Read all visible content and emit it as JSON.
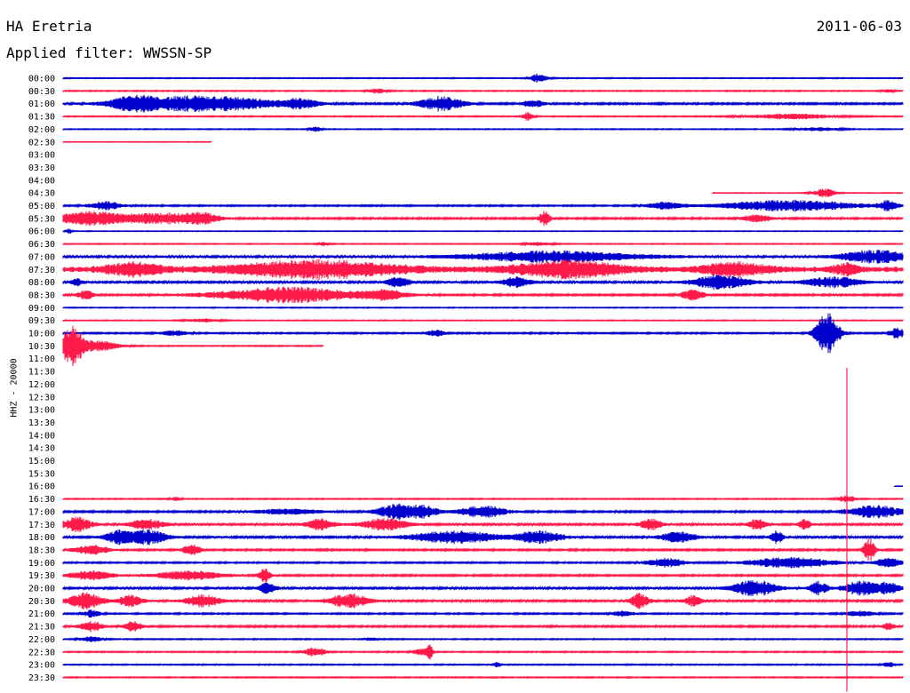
{
  "header": {
    "station": "HA Eretria",
    "date": "2011-06-03",
    "filter": "Applied filter: WWSSN-SP"
  },
  "chart_data": {
    "type": "line",
    "title": "HA Eretria",
    "ylabel": "HHZ - 20000",
    "x_unit": "minutes within row (0-30)",
    "colors": {
      "even_row": "#0000cc",
      "odd_row": "#ff1a4a"
    },
    "rows": [
      {
        "label": "00:00",
        "start": 0,
        "end": 30,
        "amp": 0.5,
        "bursts": [
          [
            17,
            0.3,
            5
          ]
        ]
      },
      {
        "label": "00:30",
        "start": 0,
        "end": 30,
        "amp": 0.6,
        "bursts": [
          [
            11.2,
            0.3,
            3
          ],
          [
            29.5,
            0.2,
            2
          ]
        ]
      },
      {
        "label": "01:00",
        "start": 0,
        "end": 30,
        "amp": 1.0,
        "bursts": [
          [
            2.5,
            0.8,
            7
          ],
          [
            5,
            2.5,
            9
          ],
          [
            8.5,
            0.6,
            5
          ],
          [
            13.5,
            0.8,
            8
          ],
          [
            16.8,
            0.4,
            4
          ]
        ]
      },
      {
        "label": "01:30",
        "start": 0,
        "end": 30,
        "amp": 0.6,
        "bursts": [
          [
            16.6,
            0.2,
            5
          ],
          [
            26,
            1.5,
            3
          ]
        ]
      },
      {
        "label": "02:00",
        "start": 0,
        "end": 30,
        "amp": 0.5,
        "bursts": [
          [
            9,
            0.2,
            3
          ],
          [
            27,
            0.8,
            2
          ]
        ]
      },
      {
        "label": "02:30",
        "start": 0,
        "end": 5.3,
        "amp": 0.4,
        "bursts": []
      },
      {
        "label": "03:00",
        "start": 0,
        "end": 0,
        "amp": 0,
        "bursts": []
      },
      {
        "label": "03:30",
        "start": 0,
        "end": 0,
        "amp": 0,
        "bursts": []
      },
      {
        "label": "04:00",
        "start": 0,
        "end": 0,
        "amp": 0,
        "bursts": []
      },
      {
        "label": "04:30",
        "start": 23.2,
        "end": 30,
        "amp": 0.4,
        "bursts": [
          [
            27.2,
            0.4,
            5
          ]
        ]
      },
      {
        "label": "05:00",
        "start": 0,
        "end": 30,
        "amp": 0.8,
        "bursts": [
          [
            1.5,
            0.6,
            5
          ],
          [
            21.5,
            0.6,
            4
          ],
          [
            26,
            2.5,
            6
          ],
          [
            29.5,
            0.3,
            6
          ]
        ]
      },
      {
        "label": "05:30",
        "start": 0,
        "end": 30,
        "amp": 1.0,
        "bursts": [
          [
            1,
            1.2,
            8
          ],
          [
            3.5,
            1.3,
            6
          ],
          [
            5,
            0.6,
            6
          ],
          [
            17.2,
            0.2,
            8
          ],
          [
            24.8,
            0.5,
            4
          ]
        ]
      },
      {
        "label": "06:00",
        "start": 0,
        "end": 30,
        "amp": 0.4,
        "bursts": [
          [
            0.2,
            0.1,
            3
          ]
        ]
      },
      {
        "label": "06:30",
        "start": 0,
        "end": 30,
        "amp": 0.5,
        "bursts": [
          [
            9.3,
            0.2,
            2
          ],
          [
            17,
            0.5,
            2
          ]
        ]
      },
      {
        "label": "07:00",
        "start": 0,
        "end": 30,
        "amp": 1.4,
        "bursts": [
          [
            17.5,
            3,
            6
          ],
          [
            29,
            1.2,
            7
          ]
        ]
      },
      {
        "label": "07:30",
        "start": 0,
        "end": 30,
        "amp": 3.0,
        "bursts": [
          [
            2.5,
            1,
            7
          ],
          [
            9,
            3,
            9
          ],
          [
            18,
            2,
            9
          ],
          [
            24,
            1.2,
            7
          ],
          [
            28,
            0.5,
            6
          ]
        ]
      },
      {
        "label": "08:00",
        "start": 0,
        "end": 30,
        "amp": 1.2,
        "bursts": [
          [
            0.5,
            0.2,
            4
          ],
          [
            12,
            0.4,
            6
          ],
          [
            16.2,
            0.5,
            6
          ],
          [
            23.5,
            1,
            8
          ],
          [
            27.5,
            1,
            6
          ]
        ]
      },
      {
        "label": "08:30",
        "start": 0,
        "end": 30,
        "amp": 1.0,
        "bursts": [
          [
            0.8,
            0.3,
            5
          ],
          [
            8,
            2.5,
            9
          ],
          [
            11.5,
            0.8,
            5
          ],
          [
            22.5,
            0.4,
            6
          ]
        ]
      },
      {
        "label": "09:00",
        "start": 0,
        "end": 30,
        "amp": 0.5,
        "bursts": []
      },
      {
        "label": "09:30",
        "start": 0,
        "end": 30,
        "amp": 0.5,
        "bursts": [
          [
            5,
            0.6,
            2
          ]
        ]
      },
      {
        "label": "10:00",
        "start": 0,
        "end": 30,
        "amp": 0.8,
        "bursts": [
          [
            4,
            0.5,
            3
          ],
          [
            13.3,
            0.3,
            4
          ],
          [
            27.3,
            0.4,
            24
          ],
          [
            29.8,
            0.3,
            6
          ]
        ]
      },
      {
        "label": "10:30",
        "start": 0,
        "end": 9.3,
        "amp": 0.6,
        "bursts": [
          [
            0.3,
            0.4,
            22
          ],
          [
            1.2,
            0.8,
            6
          ]
        ]
      },
      {
        "label": "11:00",
        "start": 0,
        "end": 0,
        "amp": 0,
        "bursts": []
      },
      {
        "label": "11:30",
        "start": 0,
        "end": 0,
        "amp": 0,
        "bursts": []
      },
      {
        "label": "12:00",
        "start": 0,
        "end": 0,
        "amp": 0,
        "bursts": []
      },
      {
        "label": "12:30",
        "start": 0,
        "end": 0,
        "amp": 0,
        "bursts": []
      },
      {
        "label": "13:00",
        "start": 0,
        "end": 0,
        "amp": 0,
        "bursts": []
      },
      {
        "label": "13:30",
        "start": 0,
        "end": 0,
        "amp": 0,
        "bursts": []
      },
      {
        "label": "14:00",
        "start": 0,
        "end": 0,
        "amp": 0,
        "bursts": []
      },
      {
        "label": "14:30",
        "start": 0,
        "end": 0,
        "amp": 0,
        "bursts": []
      },
      {
        "label": "15:00",
        "start": 0,
        "end": 0,
        "amp": 0,
        "bursts": []
      },
      {
        "label": "15:30",
        "start": 0,
        "end": 0,
        "amp": 0,
        "bursts": []
      },
      {
        "label": "16:00",
        "start": 29.7,
        "end": 30,
        "amp": 0.3,
        "bursts": []
      },
      {
        "label": "16:30",
        "start": 0,
        "end": 30,
        "amp": 0.6,
        "bursts": [
          [
            4,
            0.2,
            2
          ],
          [
            28,
            0.3,
            4
          ]
        ]
      },
      {
        "label": "17:00",
        "start": 0,
        "end": 30,
        "amp": 1.0,
        "bursts": [
          [
            8,
            1.2,
            3
          ],
          [
            11.8,
            0.6,
            8
          ],
          [
            12.8,
            0.6,
            7
          ],
          [
            15,
            0.8,
            7
          ],
          [
            29,
            1,
            7
          ]
        ]
      },
      {
        "label": "17:30",
        "start": 0,
        "end": 30,
        "amp": 1.2,
        "bursts": [
          [
            0.5,
            0.5,
            8
          ],
          [
            3,
            0.6,
            6
          ],
          [
            9.2,
            0.5,
            6
          ],
          [
            11.5,
            0.8,
            7
          ],
          [
            21,
            0.4,
            6
          ],
          [
            24.8,
            0.3,
            7
          ],
          [
            26.5,
            0.2,
            6
          ]
        ]
      },
      {
        "label": "18:00",
        "start": 0,
        "end": 30,
        "amp": 1.2,
        "bursts": [
          [
            2,
            0.5,
            7
          ],
          [
            3,
            0.7,
            8
          ],
          [
            14,
            1.5,
            7
          ],
          [
            17,
            0.8,
            7
          ],
          [
            22,
            0.6,
            6
          ],
          [
            25.5,
            0.2,
            8
          ]
        ]
      },
      {
        "label": "18:30",
        "start": 0,
        "end": 30,
        "amp": 1.0,
        "bursts": [
          [
            1,
            0.6,
            6
          ],
          [
            4.6,
            0.3,
            7
          ],
          [
            28.8,
            0.2,
            14
          ]
        ]
      },
      {
        "label": "19:00",
        "start": 0,
        "end": 30,
        "amp": 0.8,
        "bursts": [
          [
            21.5,
            0.7,
            5
          ],
          [
            26,
            1.5,
            6
          ],
          [
            29.5,
            0.5,
            5
          ]
        ]
      },
      {
        "label": "19:30",
        "start": 0,
        "end": 30,
        "amp": 1.0,
        "bursts": [
          [
            1,
            0.8,
            5
          ],
          [
            4.5,
            1.2,
            5
          ],
          [
            7.2,
            0.2,
            8
          ]
        ]
      },
      {
        "label": "20:00",
        "start": 0,
        "end": 30,
        "amp": 1.2,
        "bursts": [
          [
            7.3,
            0.3,
            6
          ],
          [
            24.7,
            0.8,
            9
          ],
          [
            27,
            0.3,
            8
          ],
          [
            28.5,
            0.6,
            8
          ],
          [
            29.5,
            0.5,
            6
          ]
        ]
      },
      {
        "label": "20:30",
        "start": 0,
        "end": 30,
        "amp": 1.2,
        "bursts": [
          [
            0.8,
            0.6,
            9
          ],
          [
            2.4,
            0.4,
            7
          ],
          [
            5,
            0.6,
            7
          ],
          [
            10.2,
            0.7,
            8
          ],
          [
            20.6,
            0.3,
            9
          ],
          [
            22.5,
            0.3,
            6
          ]
        ]
      },
      {
        "label": "21:00",
        "start": 0,
        "end": 30,
        "amp": 0.8,
        "bursts": [
          [
            1,
            0.3,
            4
          ],
          [
            20,
            0.4,
            3
          ],
          [
            28.5,
            0.5,
            3
          ]
        ]
      },
      {
        "label": "21:30",
        "start": 0,
        "end": 30,
        "amp": 1.0,
        "bursts": [
          [
            1,
            0.4,
            6
          ],
          [
            2.5,
            0.3,
            6
          ],
          [
            29.5,
            0.2,
            5
          ]
        ]
      },
      {
        "label": "22:00",
        "start": 0,
        "end": 30,
        "amp": 0.6,
        "bursts": [
          [
            1,
            0.4,
            3
          ],
          [
            11,
            0.2,
            2
          ]
        ]
      },
      {
        "label": "22:30",
        "start": 0,
        "end": 30,
        "amp": 0.7,
        "bursts": [
          [
            9,
            0.4,
            5
          ],
          [
            12.8,
            0.3,
            4
          ],
          [
            13.1,
            0.1,
            12
          ]
        ]
      },
      {
        "label": "23:00",
        "start": 0,
        "end": 30,
        "amp": 0.6,
        "bursts": [
          [
            15.5,
            0.1,
            4
          ],
          [
            29.5,
            0.2,
            3
          ]
        ]
      },
      {
        "label": "23:30",
        "start": 0,
        "end": 30,
        "amp": 0.6,
        "bursts": []
      }
    ],
    "spikes": [
      {
        "row_from": 23,
        "row_to": 47,
        "minute": 28.0
      }
    ]
  }
}
